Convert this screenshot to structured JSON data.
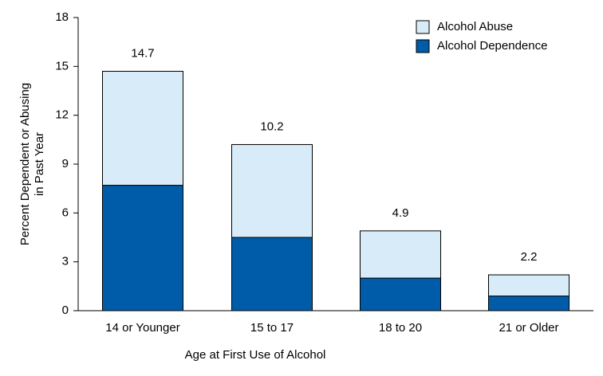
{
  "chart_data": {
    "type": "stacked_bar",
    "xlabel": "Age at First Use of Alcohol",
    "ylabel": [
      "Percent Dependent or Abusing",
      "in Past Year"
    ],
    "categories": [
      "14 or Younger",
      "15 to 17",
      "18 to 20",
      "21 or Older"
    ],
    "series": [
      {
        "name": "Alcohol Dependence",
        "color": "#005ca8",
        "values": [
          7.7,
          4.5,
          2.0,
          0.9
        ]
      },
      {
        "name": "Alcohol Abuse",
        "color": "#d7ecf8",
        "values": [
          7.0,
          5.7,
          2.9,
          1.3
        ]
      }
    ],
    "totals": [
      14.7,
      10.2,
      4.9,
      2.2
    ],
    "ylim": [
      0,
      18
    ],
    "yticks": [
      0,
      3,
      6,
      9,
      12,
      15,
      18
    ],
    "legend": "top-right"
  }
}
